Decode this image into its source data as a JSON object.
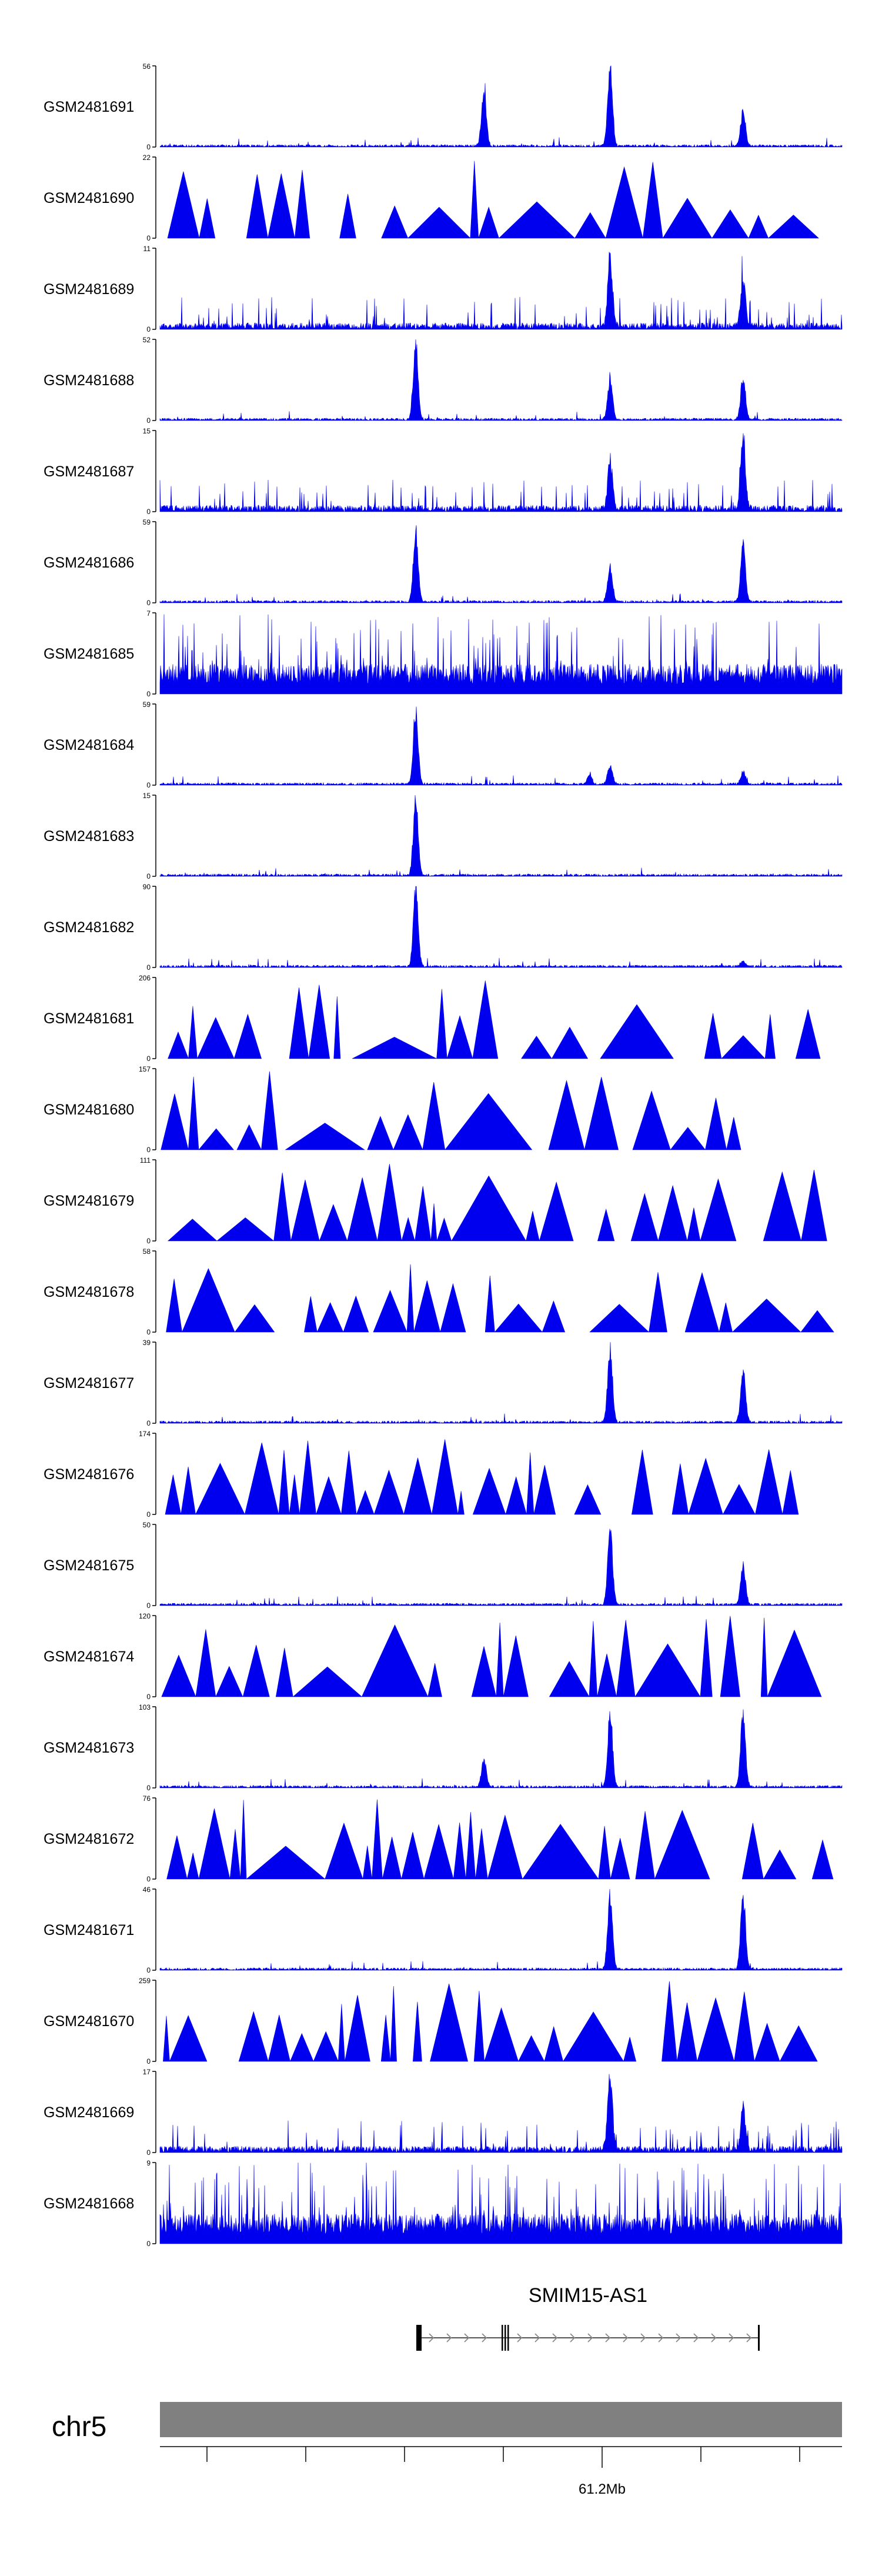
{
  "chart_data": {
    "type": "area",
    "colors": {
      "signal": "#0000ee",
      "axis": "#000000",
      "ideogram": "#808080",
      "gene": "#000000"
    },
    "tracks": [
      {
        "name": "GSM2481691",
        "ymax": "56",
        "ymin": "0",
        "style": "peaks",
        "peaks": [
          [
            0.475,
            0.7
          ],
          [
            0.66,
            1.0
          ],
          [
            0.855,
            0.45
          ]
        ]
      },
      {
        "name": "GSM2481690",
        "ymax": "22",
        "ymin": "0",
        "style": "sparse",
        "peaks": []
      },
      {
        "name": "GSM2481689",
        "ymax": "11",
        "ymin": "0",
        "style": "noisy",
        "peaks": [
          [
            0.66,
            0.9
          ],
          [
            0.855,
            0.6
          ]
        ]
      },
      {
        "name": "GSM2481688",
        "ymax": "52",
        "ymin": "0",
        "style": "peaks",
        "peaks": [
          [
            0.375,
            0.95
          ],
          [
            0.66,
            0.5
          ],
          [
            0.855,
            0.55
          ]
        ]
      },
      {
        "name": "GSM2481687",
        "ymax": "15",
        "ymin": "0",
        "style": "noisy",
        "peaks": [
          [
            0.66,
            0.6
          ],
          [
            0.855,
            0.9
          ]
        ]
      },
      {
        "name": "GSM2481686",
        "ymax": "59",
        "ymin": "0",
        "style": "peaks",
        "peaks": [
          [
            0.375,
            0.9
          ],
          [
            0.66,
            0.45
          ],
          [
            0.855,
            0.7
          ]
        ]
      },
      {
        "name": "GSM2481685",
        "ymax": "7",
        "ymin": "0",
        "style": "dense",
        "peaks": []
      },
      {
        "name": "GSM2481684",
        "ymax": "59",
        "ymin": "0",
        "style": "peaks",
        "peaks": [
          [
            0.375,
            0.95
          ],
          [
            0.66,
            0.25
          ],
          [
            0.63,
            0.12
          ],
          [
            0.855,
            0.15
          ]
        ]
      },
      {
        "name": "GSM2481683",
        "ymax": "15",
        "ymin": "0",
        "style": "noisy-low",
        "peaks": [
          [
            0.375,
            0.95
          ]
        ]
      },
      {
        "name": "GSM2481682",
        "ymax": "90",
        "ymin": "0",
        "style": "peaks",
        "peaks": [
          [
            0.375,
            0.95
          ],
          [
            0.855,
            0.06
          ]
        ]
      },
      {
        "name": "GSM2481681",
        "ymax": "206",
        "ymin": "0",
        "style": "sparse",
        "peaks": []
      },
      {
        "name": "GSM2481680",
        "ymax": "157",
        "ymin": "0",
        "style": "sparse",
        "peaks": []
      },
      {
        "name": "GSM2481679",
        "ymax": "111",
        "ymin": "0",
        "style": "sparse",
        "peaks": []
      },
      {
        "name": "GSM2481678",
        "ymax": "58",
        "ymin": "0",
        "style": "sparse",
        "peaks": []
      },
      {
        "name": "GSM2481677",
        "ymax": "39",
        "ymin": "0",
        "style": "peaks",
        "peaks": [
          [
            0.66,
            0.95
          ],
          [
            0.855,
            0.65
          ]
        ]
      },
      {
        "name": "GSM2481676",
        "ymax": "174",
        "ymin": "0",
        "style": "sparse",
        "peaks": []
      },
      {
        "name": "GSM2481675",
        "ymax": "50",
        "ymin": "0",
        "style": "peaks",
        "peaks": [
          [
            0.66,
            0.95
          ],
          [
            0.855,
            0.5
          ]
        ]
      },
      {
        "name": "GSM2481674",
        "ymax": "120",
        "ymin": "0",
        "style": "sparse",
        "peaks": []
      },
      {
        "name": "GSM2481673",
        "ymax": "103",
        "ymin": "0",
        "style": "peaks",
        "peaks": [
          [
            0.66,
            0.95
          ],
          [
            0.855,
            0.95
          ],
          [
            0.475,
            0.35
          ]
        ]
      },
      {
        "name": "GSM2481672",
        "ymax": "76",
        "ymin": "0",
        "style": "sparse",
        "peaks": []
      },
      {
        "name": "GSM2481671",
        "ymax": "46",
        "ymin": "0",
        "style": "peaks",
        "peaks": [
          [
            0.66,
            0.95
          ],
          [
            0.855,
            0.95
          ]
        ]
      },
      {
        "name": "GSM2481670",
        "ymax": "259",
        "ymin": "0",
        "style": "sparse",
        "peaks": []
      },
      {
        "name": "GSM2481669",
        "ymax": "17",
        "ymin": "0",
        "style": "noisy",
        "peaks": [
          [
            0.66,
            0.95
          ],
          [
            0.855,
            0.55
          ]
        ]
      },
      {
        "name": "GSM2481668",
        "ymax": "9",
        "ymin": "0",
        "style": "dense",
        "peaks": []
      }
    ],
    "gene": {
      "name": "SMIM15-AS1",
      "strand": "+"
    },
    "chromosome": {
      "name": "chr5",
      "tick_label": "61.2Mb"
    }
  }
}
